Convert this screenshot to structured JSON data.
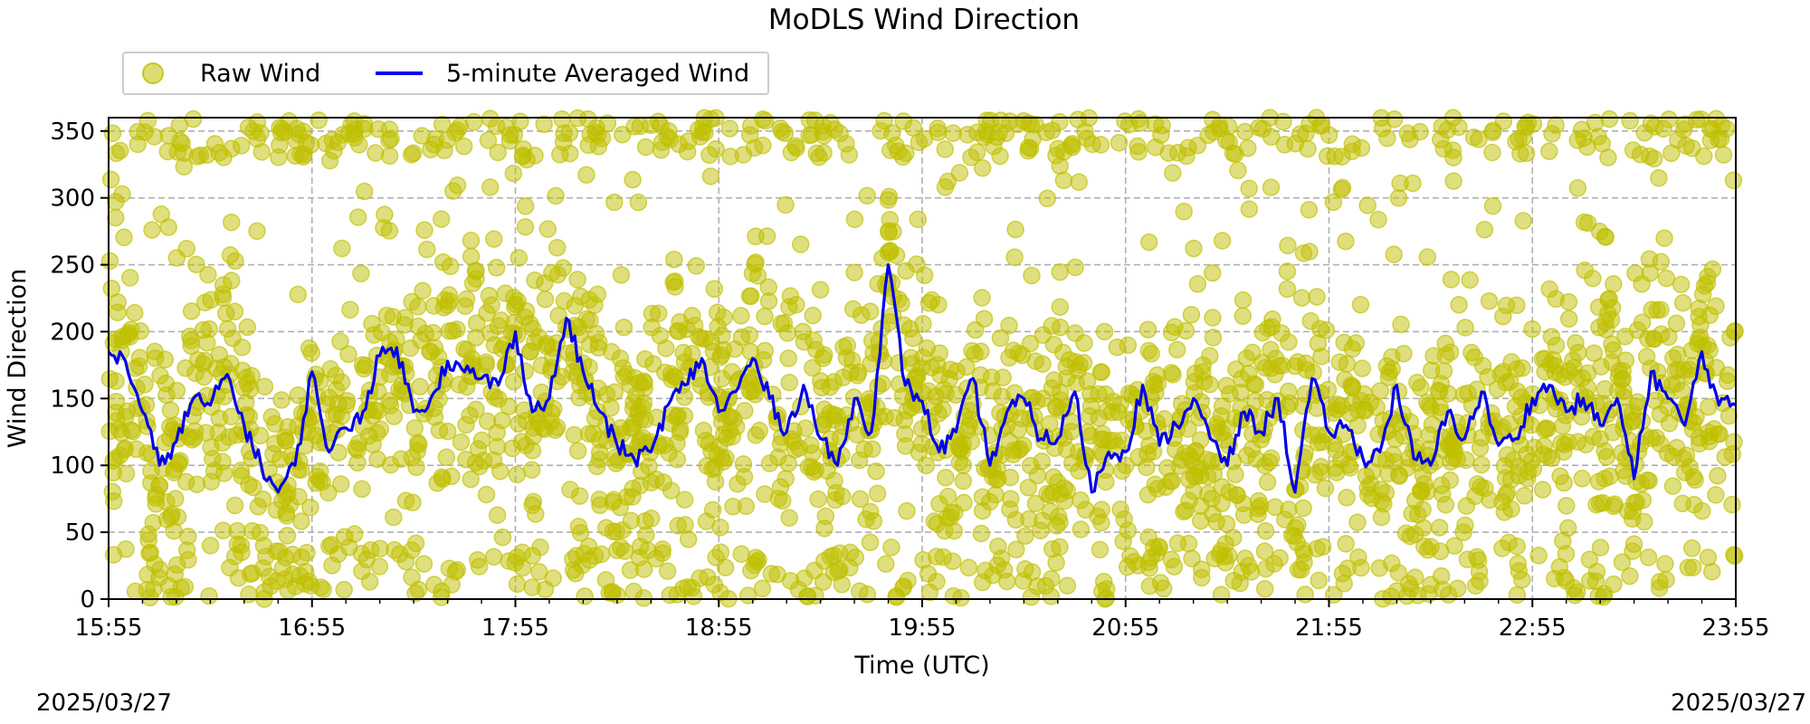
{
  "chart_data": {
    "type": "scatter",
    "title": "MoDLS Wind Direction",
    "xlabel": "Time (UTC)",
    "ylabel": "Wind Direction",
    "xlim": [
      "15:55",
      "23:55"
    ],
    "ylim": [
      0,
      360
    ],
    "x_ticks": [
      "15:55",
      "16:55",
      "17:55",
      "18:55",
      "19:55",
      "20:55",
      "21:55",
      "22:55",
      "23:55"
    ],
    "y_ticks": [
      0,
      50,
      100,
      150,
      200,
      250,
      300,
      350
    ],
    "grid": true,
    "legend_placement": "top-left, above plot",
    "date_left": "2025/03/27",
    "date_right": "2025/03/27",
    "series": [
      {
        "name": "Raw Wind",
        "kind": "scatter",
        "color": "#bfbf00",
        "note_values": "dense raw points spanning 0-360 throughout the period"
      },
      {
        "name": "5-minute Averaged Wind",
        "kind": "line",
        "color": "#0000ee",
        "x": [
          "15:55",
          "16:00",
          "16:05",
          "16:10",
          "16:15",
          "16:20",
          "16:25",
          "16:30",
          "16:35",
          "16:40",
          "16:45",
          "16:50",
          "16:55",
          "17:00",
          "17:05",
          "17:10",
          "17:15",
          "17:20",
          "17:25",
          "17:30",
          "17:35",
          "17:40",
          "17:45",
          "17:50",
          "17:55",
          "18:00",
          "18:05",
          "18:10",
          "18:15",
          "18:20",
          "18:25",
          "18:30",
          "18:35",
          "18:40",
          "18:45",
          "18:50",
          "18:55",
          "19:00",
          "19:05",
          "19:10",
          "19:15",
          "19:20",
          "19:25",
          "19:30",
          "19:35",
          "19:40",
          "19:45",
          "19:50",
          "19:55",
          "20:00",
          "20:05",
          "20:10",
          "20:15",
          "20:20",
          "20:25",
          "20:30",
          "20:35",
          "20:40",
          "20:45",
          "20:50",
          "20:55",
          "21:00",
          "21:05",
          "21:10",
          "21:15",
          "21:20",
          "21:25",
          "21:30",
          "21:35",
          "21:40",
          "21:45",
          "21:50",
          "21:55",
          "22:00",
          "22:05",
          "22:10",
          "22:15",
          "22:20",
          "22:25",
          "22:30",
          "22:35",
          "22:40",
          "22:45",
          "22:50",
          "22:55",
          "23:00",
          "23:05",
          "23:10",
          "23:15",
          "23:20",
          "23:25",
          "23:30",
          "23:35",
          "23:40",
          "23:45",
          "23:50",
          "23:55"
        ],
        "values": [
          185,
          178,
          140,
          100,
          118,
          150,
          145,
          168,
          130,
          100,
          80,
          100,
          170,
          110,
          128,
          140,
          182,
          188,
          140,
          150,
          178,
          170,
          165,
          160,
          200,
          140,
          150,
          210,
          170,
          140,
          115,
          105,
          110,
          145,
          160,
          180,
          140,
          155,
          180,
          150,
          125,
          160,
          120,
          100,
          150,
          125,
          250,
          160,
          148,
          110,
          125,
          165,
          100,
          140,
          150,
          120,
          120,
          155,
          80,
          110,
          110,
          160,
          115,
          130,
          150,
          120,
          100,
          140,
          125,
          150,
          80,
          165,
          125,
          130,
          105,
          110,
          160,
          105,
          100,
          140,
          120,
          155,
          115,
          120,
          150,
          160,
          140,
          150,
          130,
          150,
          90,
          170,
          150,
          130,
          185,
          145,
          145
        ]
      }
    ]
  }
}
